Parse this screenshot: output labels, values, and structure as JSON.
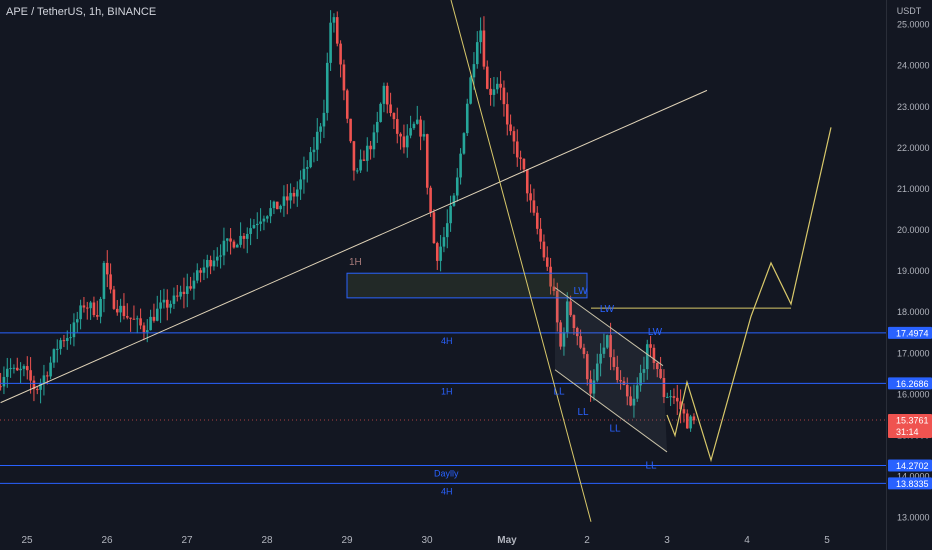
{
  "header": {
    "title": "APE / TetherUS, 1h, BINANCE"
  },
  "colors": {
    "background": "#131722",
    "up": "#26a69a",
    "down": "#ef5350",
    "level_line": "#2962ff",
    "trend_line": "#e0d3b8",
    "projection": "#d8c86a",
    "channel": "#c9c2a8",
    "axis_text": "#b2b5be",
    "label_blue": "#2962ff",
    "current_price_bg": "#ef5350"
  },
  "chart_data": {
    "type": "candlestick",
    "title": "APE / TetherUS, 1h, BINANCE",
    "ylabel": "USDT",
    "ylim": [
      12.7,
      25.6
    ],
    "y_ticks": [
      13.0,
      14.0,
      15.0,
      16.0,
      17.0,
      18.0,
      19.0,
      20.0,
      21.0,
      22.0,
      23.0,
      24.0,
      25.0
    ],
    "y_tick_labels": [
      "13.0000",
      "14.0000",
      "15.0000",
      "16.0000",
      "17.0000",
      "18.0000",
      "19.0000",
      "20.0000",
      "21.0000",
      "22.0000",
      "23.0000",
      "24.0000",
      "25.0000"
    ],
    "x_ticks": [
      {
        "day": 0,
        "label": "25"
      },
      {
        "day": 1,
        "label": "26"
      },
      {
        "day": 2,
        "label": "27"
      },
      {
        "day": 3,
        "label": "28"
      },
      {
        "day": 4,
        "label": "29"
      },
      {
        "day": 5,
        "label": "30"
      },
      {
        "day": 6,
        "label": "May"
      },
      {
        "day": 7,
        "label": "2"
      },
      {
        "day": 8,
        "label": "3"
      },
      {
        "day": 9,
        "label": "4"
      },
      {
        "day": 10,
        "label": "5"
      }
    ],
    "xlim": [
      -0.33,
      10.85
    ],
    "price_path": [
      [
        -0.33,
        16.2
      ],
      [
        -0.2,
        16.7
      ],
      [
        -0.1,
        16.5
      ],
      [
        0,
        16.6
      ],
      [
        0.15,
        16.1
      ],
      [
        0.3,
        16.6
      ],
      [
        0.45,
        17.3
      ],
      [
        0.6,
        17.5
      ],
      [
        0.75,
        18.2
      ],
      [
        0.95,
        18.0
      ],
      [
        1.0,
        19.2
      ],
      [
        1.1,
        18.3
      ],
      [
        1.3,
        17.9
      ],
      [
        1.5,
        17.6
      ],
      [
        1.7,
        18.1
      ],
      [
        1.9,
        18.3
      ],
      [
        2.1,
        18.7
      ],
      [
        2.3,
        19.2
      ],
      [
        2.5,
        19.6
      ],
      [
        2.7,
        19.8
      ],
      [
        2.85,
        20.1
      ],
      [
        3.0,
        20.4
      ],
      [
        3.2,
        20.6
      ],
      [
        3.4,
        20.9
      ],
      [
        3.6,
        21.8
      ],
      [
        3.75,
        22.9
      ],
      [
        3.85,
        25.4
      ],
      [
        3.95,
        24.2
      ],
      [
        4.05,
        22.5
      ],
      [
        4.15,
        21.2
      ],
      [
        4.25,
        21.8
      ],
      [
        4.4,
        22.3
      ],
      [
        4.5,
        23.5
      ],
      [
        4.6,
        22.7
      ],
      [
        4.75,
        22.0
      ],
      [
        4.9,
        22.6
      ],
      [
        5.0,
        22.3
      ],
      [
        5.05,
        21.0
      ],
      [
        5.1,
        20.2
      ],
      [
        5.15,
        19.3
      ],
      [
        5.25,
        19.8
      ],
      [
        5.4,
        20.9
      ],
      [
        5.55,
        23.2
      ],
      [
        5.62,
        24.1
      ],
      [
        5.7,
        25.1
      ],
      [
        5.8,
        23.3
      ],
      [
        5.95,
        23.7
      ],
      [
        6.05,
        22.4
      ],
      [
        6.15,
        22.0
      ],
      [
        6.25,
        21.4
      ],
      [
        6.35,
        20.5
      ],
      [
        6.45,
        19.8
      ],
      [
        6.55,
        19.0
      ],
      [
        6.65,
        18.2
      ],
      [
        6.7,
        17.0
      ],
      [
        6.8,
        18.2
      ],
      [
        6.9,
        17.6
      ],
      [
        7.0,
        16.9
      ],
      [
        7.1,
        16.0
      ],
      [
        7.2,
        16.9
      ],
      [
        7.3,
        17.3
      ],
      [
        7.4,
        16.4
      ],
      [
        7.5,
        16.1
      ],
      [
        7.6,
        15.6
      ],
      [
        7.7,
        16.4
      ],
      [
        7.8,
        17.1
      ],
      [
        7.9,
        16.8
      ],
      [
        8.0,
        16.0
      ],
      [
        8.1,
        16.0
      ],
      [
        8.2,
        15.7
      ],
      [
        8.3,
        15.3
      ],
      [
        8.35,
        15.37
      ]
    ],
    "horizontal_levels": [
      {
        "price": 17.4974,
        "label": "17.4974",
        "tag": "4H"
      },
      {
        "price": 16.2686,
        "label": "16.2686",
        "tag": "1H"
      },
      {
        "price": 14.2702,
        "label": "14.2702",
        "tag": "Daylly"
      },
      {
        "price": 13.8335,
        "label": "13.8335",
        "tag": "4H"
      }
    ],
    "current_price": {
      "price": 15.3761,
      "label": "15.3761",
      "countdown": "31:14"
    },
    "zone": {
      "x_start": 4.0,
      "x_end": 7.0,
      "price_high": 18.95,
      "price_low": 18.35,
      "tag": "1H"
    },
    "resistance_line": {
      "price": 18.1,
      "x_start": 7.05,
      "x_end": 9.55
    },
    "rising_trendline": [
      [
        -0.33,
        15.8
      ],
      [
        8.5,
        23.4
      ]
    ],
    "falling_trendline": [
      [
        5.3,
        25.6
      ],
      [
        7.05,
        12.9
      ]
    ],
    "channel_upper": [
      [
        6.6,
        18.6
      ],
      [
        7.95,
        16.7
      ]
    ],
    "channel_lower": [
      [
        6.6,
        16.6
      ],
      [
        8.0,
        14.6
      ]
    ],
    "channel_fills": [
      [
        [
          6.6,
          18.6
        ],
        [
          6.6,
          16.6
        ],
        [
          8.0,
          14.6
        ],
        [
          7.95,
          16.7
        ]
      ]
    ],
    "projection_path": [
      [
        8.0,
        15.5
      ],
      [
        8.1,
        15.0
      ],
      [
        8.25,
        16.3
      ],
      [
        8.55,
        14.4
      ],
      [
        9.05,
        17.9
      ],
      [
        9.3,
        19.2
      ],
      [
        9.55,
        18.2
      ],
      [
        10.05,
        22.5
      ]
    ],
    "annotations": [
      {
        "text": "LW",
        "x": 6.92,
        "price": 18.45
      },
      {
        "text": "LW",
        "x": 7.25,
        "price": 18.0
      },
      {
        "text": "LW",
        "x": 7.85,
        "price": 17.45
      },
      {
        "text": "LL",
        "x": 6.65,
        "price": 16.0
      },
      {
        "text": "LL",
        "x": 6.95,
        "price": 15.5
      },
      {
        "text": "LL",
        "x": 7.35,
        "price": 15.1
      },
      {
        "text": "LL",
        "x": 7.8,
        "price": 14.2
      }
    ]
  }
}
